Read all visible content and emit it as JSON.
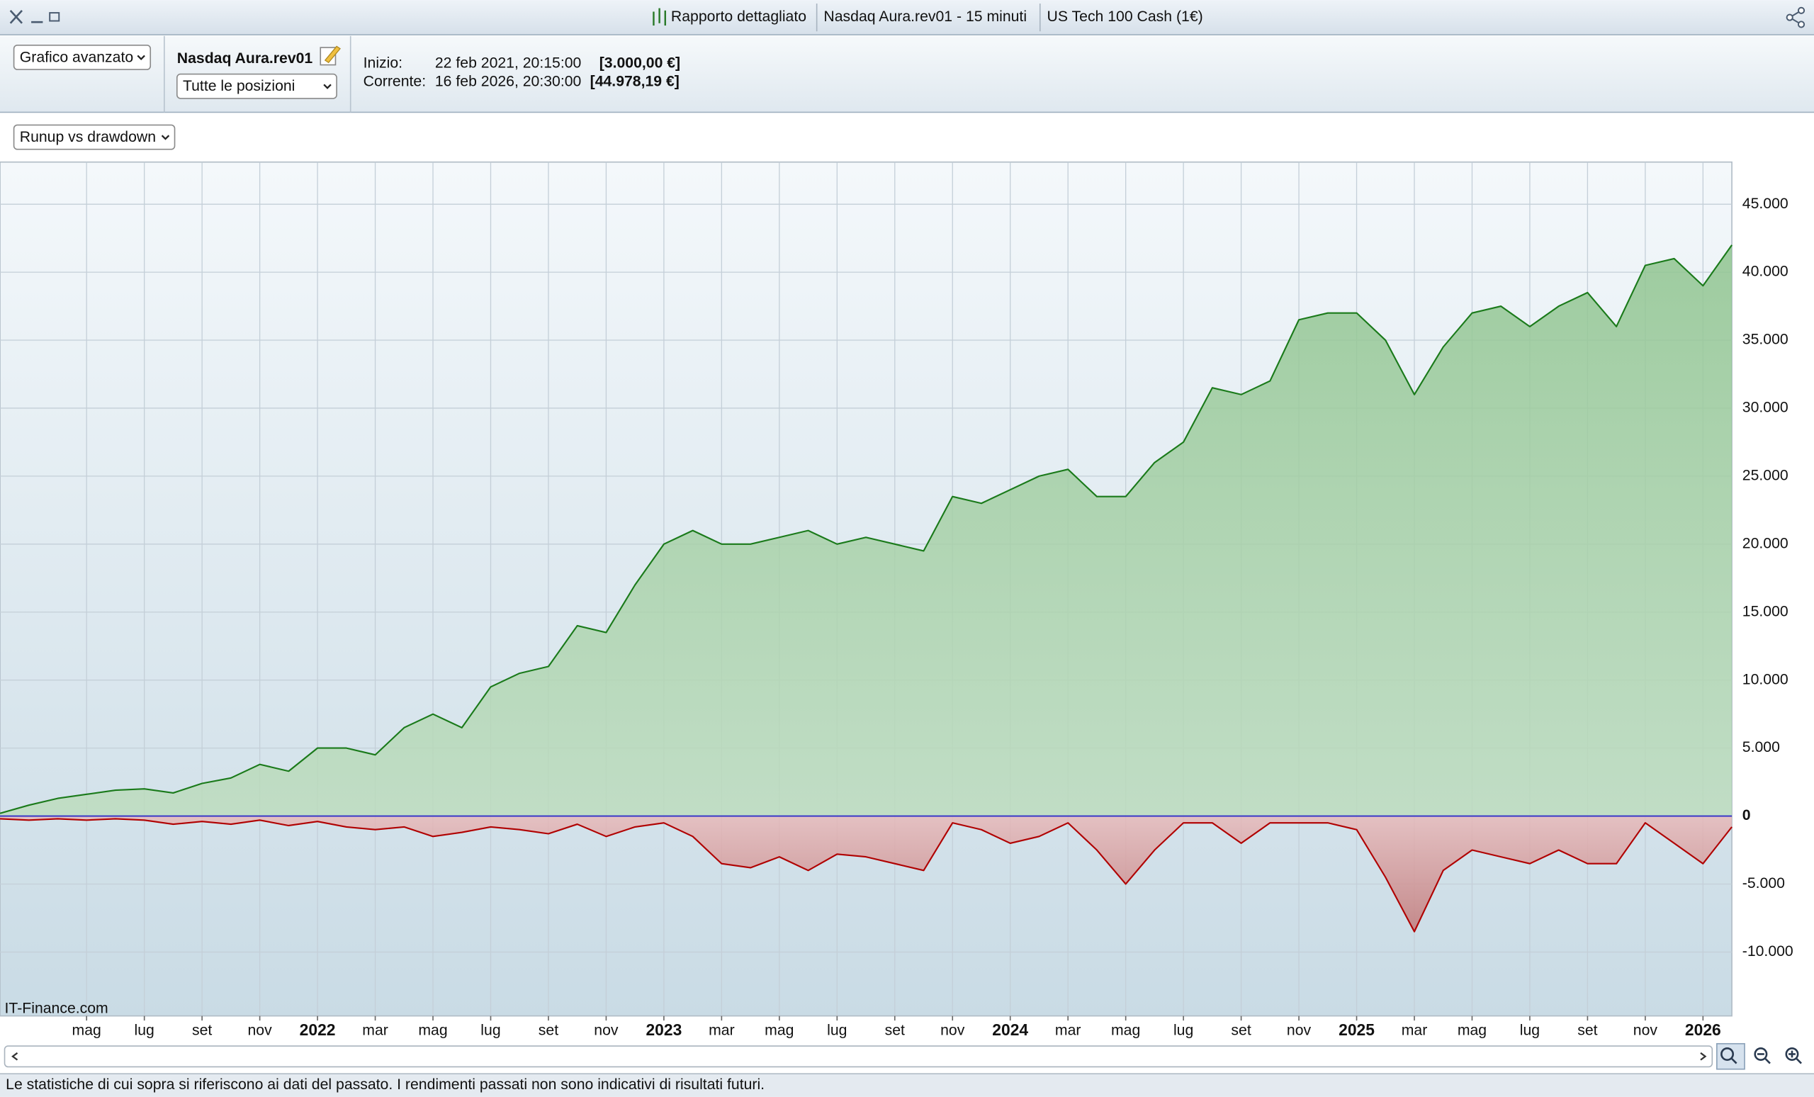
{
  "window": {
    "tabs": [
      "Rapporto dettagliato",
      "Nasdaq Aura.rev01 - 15 minuti",
      "US Tech 100 Cash (1€)"
    ]
  },
  "toolbar": {
    "view_select": "Grafico avanzato",
    "strategy": "Nasdaq Aura.rev01",
    "positions_select": "Tutte le posizioni",
    "start_label": "Inizio:",
    "start_date": "22 feb 2021, 20:15:00",
    "start_value": "[3.000,00 €]",
    "current_label": "Corrente:",
    "current_date": "16 feb 2026, 20:30:00",
    "current_value": "[44.978,19 €]"
  },
  "chart_select": "Runup vs drawdown",
  "chart_data": {
    "type": "line",
    "watermark": "IT-Finance.com",
    "x": [
      "2021-02",
      "2021-03",
      "2021-04",
      "2021-05",
      "2021-06",
      "2021-07",
      "2021-08",
      "2021-09",
      "2021-10",
      "2021-11",
      "2021-12",
      "2022-01",
      "2022-02",
      "2022-03",
      "2022-04",
      "2022-05",
      "2022-06",
      "2022-07",
      "2022-08",
      "2022-09",
      "2022-10",
      "2022-11",
      "2022-12",
      "2023-01",
      "2023-02",
      "2023-03",
      "2023-04",
      "2023-05",
      "2023-06",
      "2023-07",
      "2023-08",
      "2023-09",
      "2023-10",
      "2023-11",
      "2023-12",
      "2024-01",
      "2024-02",
      "2024-03",
      "2024-04",
      "2024-05",
      "2024-06",
      "2024-07",
      "2024-08",
      "2024-09",
      "2024-10",
      "2024-11",
      "2024-12",
      "2025-01",
      "2025-02",
      "2025-03",
      "2025-04",
      "2025-05",
      "2025-06",
      "2025-07",
      "2025-08",
      "2025-09",
      "2025-10",
      "2025-11",
      "2025-12",
      "2026-01",
      "2026-02"
    ],
    "series": [
      {
        "color": "#1a7a1a",
        "values": [
          200,
          800,
          1300,
          1600,
          1900,
          2000,
          1700,
          2400,
          2800,
          3800,
          3300,
          5000,
          5000,
          4500,
          6500,
          7500,
          6500,
          9500,
          10500,
          11000,
          14000,
          13500,
          17000,
          20000,
          21000,
          20000,
          20000,
          20500,
          21000,
          20000,
          20500,
          20000,
          19500,
          23500,
          23000,
          24000,
          25000,
          25500,
          23500,
          23500,
          26000,
          27500,
          31500,
          31000,
          32000,
          36500,
          37000,
          37000,
          35000,
          31000,
          34500,
          37000,
          37500,
          36000,
          37500,
          38500,
          36000,
          40500,
          41000,
          39000,
          42000
        ]
      },
      {
        "color": "#b00000",
        "values": [
          -200,
          -300,
          -200,
          -300,
          -200,
          -300,
          -600,
          -400,
          -600,
          -300,
          -700,
          -400,
          -800,
          -1000,
          -800,
          -1500,
          -1200,
          -800,
          -1000,
          -1300,
          -600,
          -1500,
          -800,
          -500,
          -1500,
          -3500,
          -3800,
          -3000,
          -4000,
          -2800,
          -3000,
          -3500,
          -4000,
          -500,
          -1000,
          -2000,
          -1500,
          -500,
          -2500,
          -5000,
          -2500,
          -500,
          -500,
          -2000,
          -500,
          -500,
          -500,
          -1000,
          -4500,
          -8500,
          -4000,
          -2500,
          -3000,
          -3500,
          -2500,
          -3500,
          -3500,
          -500,
          -2000,
          -3500,
          -800
        ]
      }
    ],
    "xlim": [
      "2021-02",
      "2026-02"
    ],
    "xticks": [
      {
        "value": "2021-05",
        "label": "mag"
      },
      {
        "value": "2021-07",
        "label": "lug"
      },
      {
        "value": "2021-09",
        "label": "set"
      },
      {
        "value": "2021-11",
        "label": "nov"
      },
      {
        "value": "2022-01",
        "label": "2022"
      },
      {
        "value": "2022-03",
        "label": "mar"
      },
      {
        "value": "2022-05",
        "label": "mag"
      },
      {
        "value": "2022-07",
        "label": "lug"
      },
      {
        "value": "2022-09",
        "label": "set"
      },
      {
        "value": "2022-11",
        "label": "nov"
      },
      {
        "value": "2023-01",
        "label": "2023"
      },
      {
        "value": "2023-03",
        "label": "mar"
      },
      {
        "value": "2023-05",
        "label": "mag"
      },
      {
        "value": "2023-07",
        "label": "lug"
      },
      {
        "value": "2023-09",
        "label": "set"
      },
      {
        "value": "2023-11",
        "label": "nov"
      },
      {
        "value": "2024-01",
        "label": "2024"
      },
      {
        "value": "2024-03",
        "label": "mar"
      },
      {
        "value": "2024-05",
        "label": "mag"
      },
      {
        "value": "2024-07",
        "label": "lug"
      },
      {
        "value": "2024-09",
        "label": "set"
      },
      {
        "value": "2024-11",
        "label": "nov"
      },
      {
        "value": "2025-01",
        "label": "2025"
      },
      {
        "value": "2025-03",
        "label": "mar"
      },
      {
        "value": "2025-05",
        "label": "mag"
      },
      {
        "value": "2025-07",
        "label": "lug"
      },
      {
        "value": "2025-09",
        "label": "set"
      },
      {
        "value": "2025-11",
        "label": "nov"
      },
      {
        "value": "2026-01",
        "label": "2026"
      }
    ],
    "ylim": [
      -14700,
      48100
    ],
    "yticks": [
      {
        "value": -10000,
        "label": "-10.000"
      },
      {
        "value": -5000,
        "label": "-5.000"
      },
      0,
      {
        "value": 5000,
        "label": "5.000"
      },
      {
        "value": 10000,
        "label": "10.000"
      },
      {
        "value": 15000,
        "label": "15.000"
      },
      {
        "value": 20000,
        "label": "20.000"
      },
      {
        "value": 25000,
        "label": "25.000"
      },
      {
        "value": 30000,
        "label": "30.000"
      },
      {
        "value": 35000,
        "label": "35.000"
      },
      {
        "value": 40000,
        "label": "40.000"
      },
      {
        "value": 45000,
        "label": "45.000"
      }
    ],
    "zero_line_color": "#3030c8",
    "grid": true
  },
  "footer": "Le statistiche di cui sopra si riferiscono ai dati del passato. I rendimenti passati non sono indicativi di risultati futuri."
}
